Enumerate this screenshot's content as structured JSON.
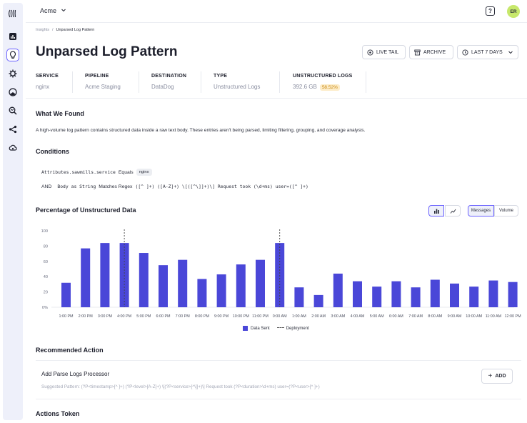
{
  "header": {
    "org": "Acme",
    "avatar_initials": "ER",
    "help_icon_text": "?"
  },
  "breadcrumb": {
    "parent": "Insights",
    "separator": "/",
    "current": "Unparsed Log Pattern"
  },
  "page": {
    "title": "Unparsed Log Pattern",
    "actions": {
      "live_tail": "LIVE TAIL",
      "archive": "ARCHIVE",
      "range": "LAST 7 DAYS"
    }
  },
  "meta": {
    "service": {
      "label": "SERVICE",
      "value": "nginx"
    },
    "pipeline": {
      "label": "PIPELINE",
      "value": "Acme Staging"
    },
    "destination": {
      "label": "DESTINATION",
      "value": "DataDog"
    },
    "type": {
      "label": "TYPE",
      "value": "Unstructured Logs"
    },
    "unstructured": {
      "label": "UNSTRUCTURED LOGS",
      "value": "392.6 GB",
      "percent": "58.52%"
    }
  },
  "found": {
    "heading": "What We Found",
    "text": "A high-volume log pattern contains structured data inside a raw text body. These entries aren't being parsed, limiting filtering, grouping, and coverage analysis."
  },
  "conditions": {
    "heading": "Conditions",
    "row1": {
      "field": "Attributes.sawmills.service",
      "op": "Equals",
      "value": "nginx"
    },
    "row2": {
      "prefix": "AND",
      "field": "Body as String",
      "op": "Matches Regex",
      "value": "([^ ]+) ([A-Z]+) \\[([^\\]]+)\\] Request took (\\d+ms) user=([^ ]+)"
    }
  },
  "chart_section": {
    "heading": "Percentage of Unstructured Data",
    "toggle_messages": "Messages",
    "toggle_volume": "Volume"
  },
  "chart_data": {
    "type": "bar",
    "title": "Percentage of Unstructured Data",
    "ylim": [
      0,
      100
    ],
    "yticks": [
      "0%",
      "20",
      "40",
      "60",
      "80",
      "100"
    ],
    "categories": [
      "1:00 PM",
      "2:00 PM",
      "3:00 PM",
      "4:00 PM",
      "5:00 PM",
      "6:00 PM",
      "7:00 PM",
      "8:00 PM",
      "9:00 PM",
      "10:00 PM",
      "11:00 PM",
      "0:00 AM",
      "1:00 AM",
      "2:00 AM",
      "3:00 AM",
      "4:00 AM",
      "5:00 AM",
      "6:00 AM",
      "7:00 AM",
      "8:00 AM",
      "9:00 AM",
      "10:00 AM",
      "11:00 AM",
      "12:00 PM"
    ],
    "series": [
      {
        "name": "Data Sent",
        "color": "#4a47d8",
        "values": [
          32,
          77,
          84,
          84,
          71,
          55,
          62,
          37,
          43,
          56,
          62,
          84,
          26,
          16,
          44,
          34,
          27,
          34,
          26,
          36,
          31,
          27,
          35,
          33
        ]
      }
    ],
    "deployments_at": [
      "4:00 PM",
      "0:00 AM"
    ],
    "deployment_label": "Deployment",
    "legend_position": "bottom",
    "grid": false
  },
  "recommended": {
    "heading": "Recommended Action",
    "action_title": "Add Parse Logs Processor",
    "pattern": "Suggested Pattern: (?P<timestamp>[^ ]+) (?P<level>[A-Z]+) \\[(?P<service>[^\\]]+)\\] Request took (?P<duration>\\d+ms) user=(?P<user>[^ ]+)",
    "add_label": "ADD"
  },
  "actions_token": {
    "heading": "Actions Token"
  }
}
